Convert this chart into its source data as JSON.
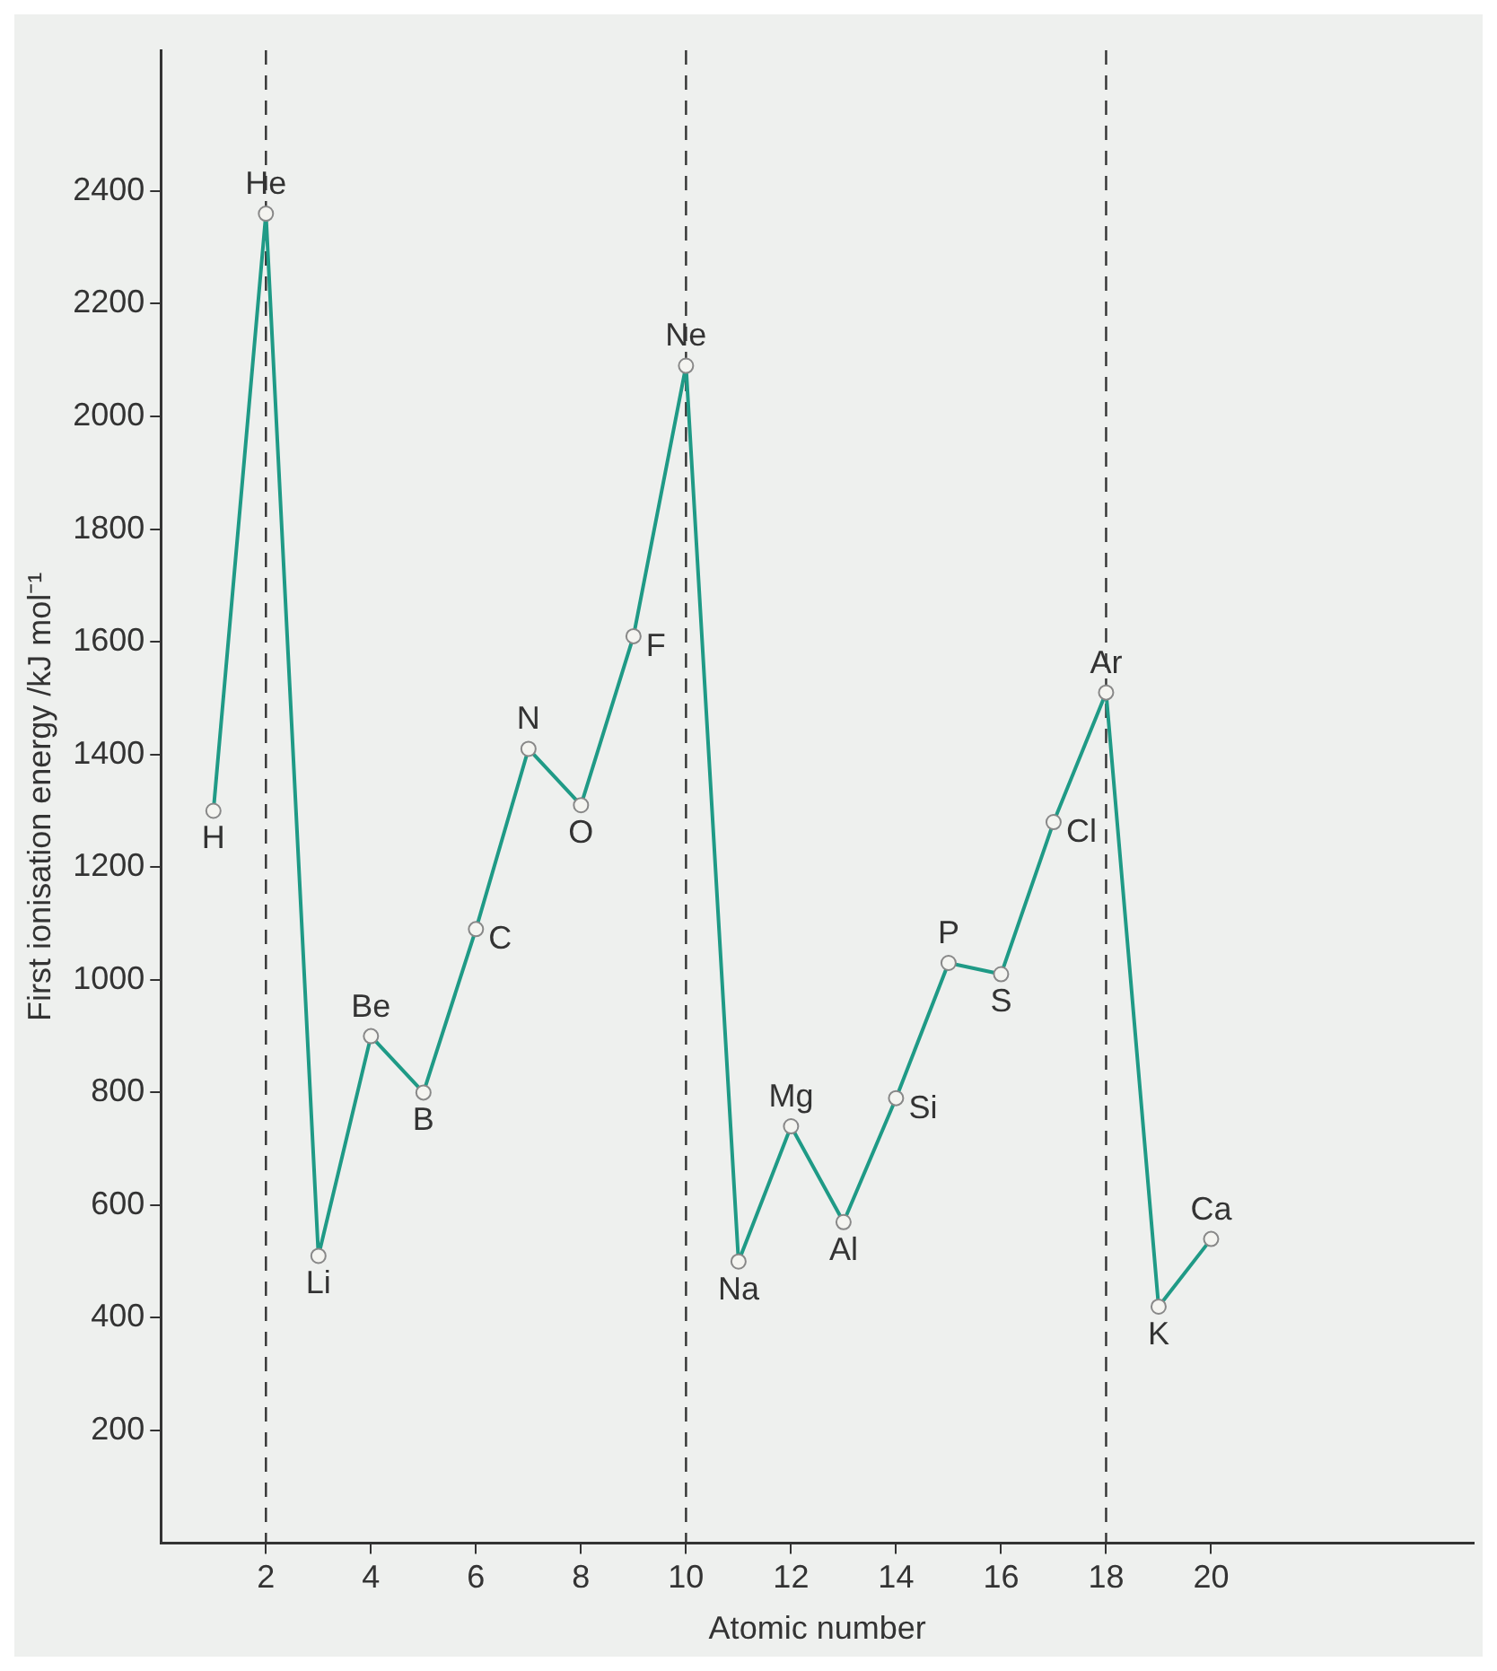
{
  "chart_data": {
    "type": "line",
    "xlabel": "Atomic number",
    "ylabel": "First ionisation energy /kJ mol⁻¹",
    "x": [
      1,
      2,
      3,
      4,
      5,
      6,
      7,
      8,
      9,
      10,
      11,
      12,
      13,
      14,
      15,
      16,
      17,
      18,
      19,
      20
    ],
    "values": [
      1300,
      2360,
      510,
      900,
      800,
      1090,
      1410,
      1310,
      1610,
      2090,
      500,
      740,
      570,
      790,
      1030,
      1010,
      1280,
      1510,
      420,
      540
    ],
    "color": "#1f9a86",
    "marker": "circle",
    "line_style": "solid",
    "xlim": [
      0,
      25
    ],
    "ylim": [
      0,
      2650
    ],
    "xticks": [
      2,
      4,
      6,
      8,
      10,
      12,
      14,
      16,
      18,
      20
    ],
    "yticks": [
      200,
      400,
      600,
      800,
      1000,
      1200,
      1400,
      1600,
      1800,
      2000,
      2200,
      2400
    ],
    "ref_lines": [
      {
        "axis": "x",
        "value": 2,
        "color": "#333333",
        "line_style": "dashed"
      },
      {
        "axis": "x",
        "value": 10,
        "color": "#333333",
        "line_style": "dashed"
      },
      {
        "axis": "x",
        "value": 18,
        "color": "#333333",
        "line_style": "dashed"
      }
    ],
    "annotations": [
      {
        "text": "H",
        "x": 1,
        "y": 1300
      },
      {
        "text": "He",
        "x": 2,
        "y": 2360
      },
      {
        "text": "Li",
        "x": 3,
        "y": 510
      },
      {
        "text": "Be",
        "x": 4,
        "y": 900
      },
      {
        "text": "B",
        "x": 5,
        "y": 800
      },
      {
        "text": "C",
        "x": 6,
        "y": 1090
      },
      {
        "text": "N",
        "x": 7,
        "y": 1410
      },
      {
        "text": "O",
        "x": 8,
        "y": 1310
      },
      {
        "text": "F",
        "x": 9,
        "y": 1610
      },
      {
        "text": "Ne",
        "x": 10,
        "y": 2090
      },
      {
        "text": "Na",
        "x": 11,
        "y": 500
      },
      {
        "text": "Mg",
        "x": 12,
        "y": 740
      },
      {
        "text": "Al",
        "x": 13,
        "y": 570
      },
      {
        "text": "Si",
        "x": 14,
        "y": 790
      },
      {
        "text": "P",
        "x": 15,
        "y": 1030
      },
      {
        "text": "S",
        "x": 16,
        "y": 1010
      },
      {
        "text": "Cl",
        "x": 17,
        "y": 1280
      },
      {
        "text": "Ar",
        "x": 18,
        "y": 1510
      },
      {
        "text": "K",
        "x": 19,
        "y": 420
      },
      {
        "text": "Ca",
        "x": 20,
        "y": 540
      }
    ]
  }
}
